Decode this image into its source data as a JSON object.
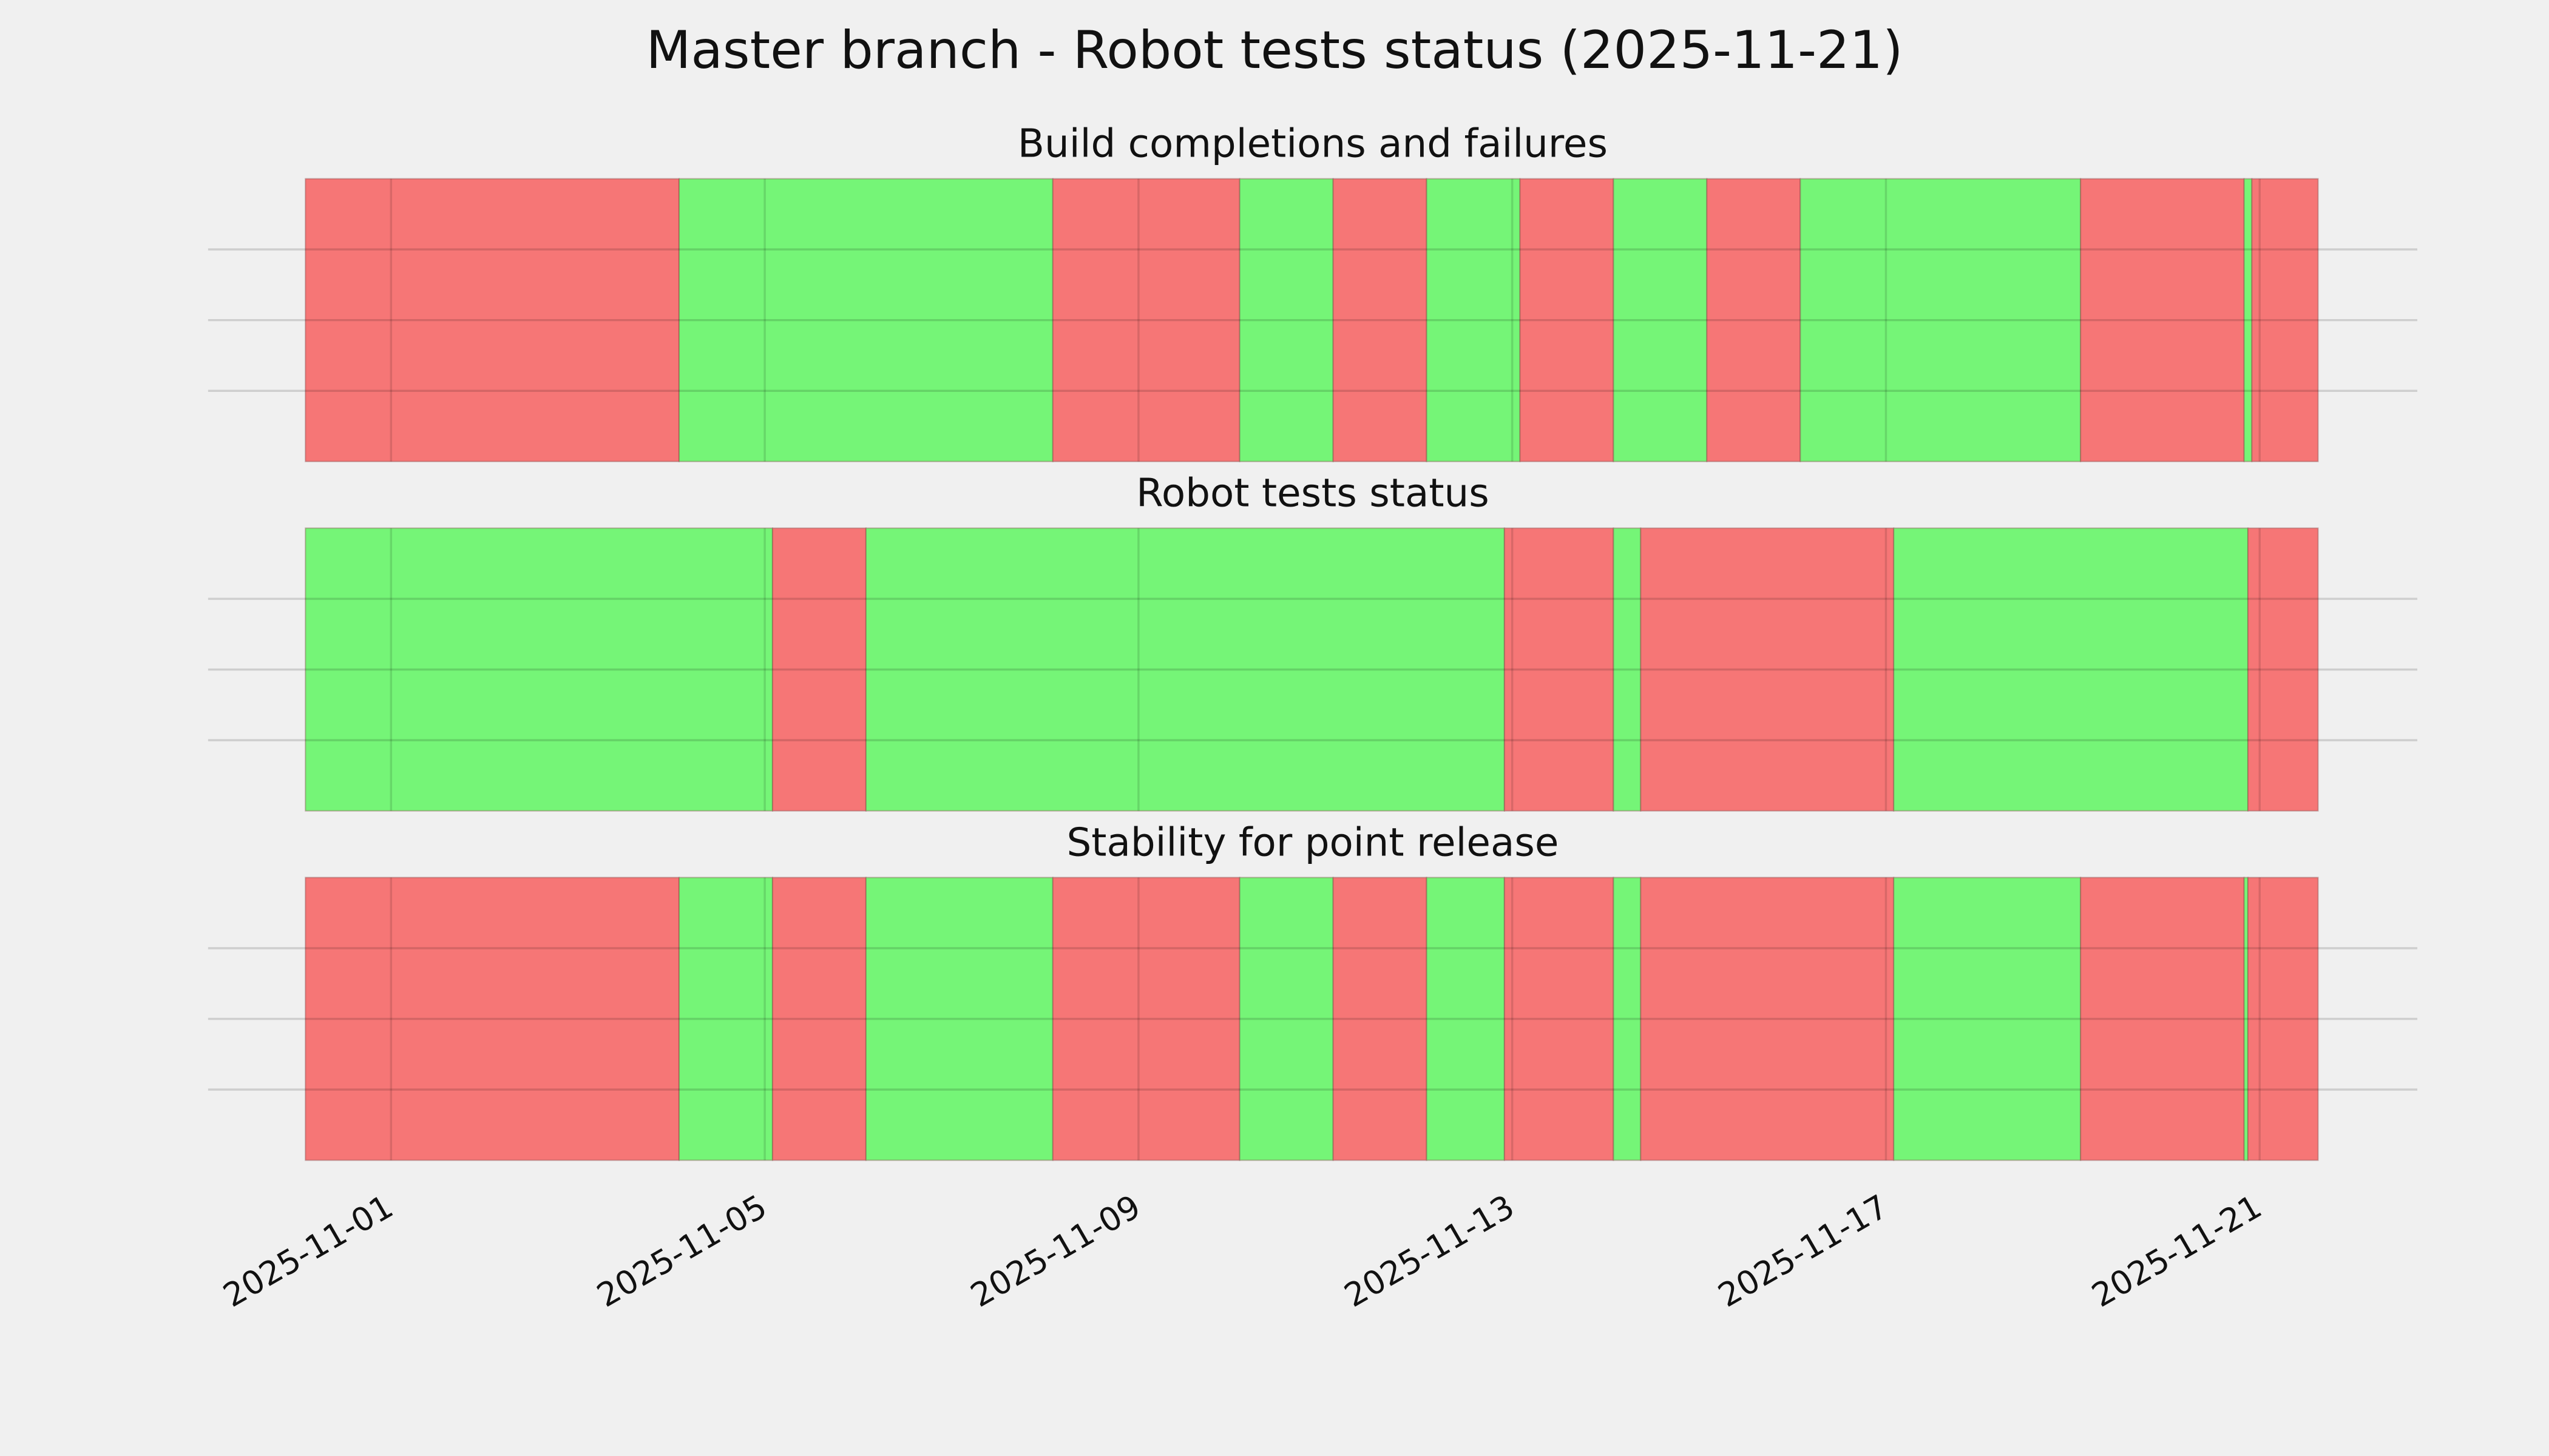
{
  "chart_data": {
    "type": "timeline",
    "title": "Master branch - Robot tests status (2025-11-21)",
    "xlim": [
      "2025-10-30T01:00",
      "2025-11-22T16:30"
    ],
    "xticks": [
      "2025-11-01",
      "2025-11-05",
      "2025-11-09",
      "2025-11-13",
      "2025-11-17",
      "2025-11-21"
    ],
    "grid": true,
    "panels": [
      {
        "title": "Build completions and failures",
        "segments": [
          {
            "start": "2025-10-31T02:00",
            "end": "2025-11-04T02:00",
            "color": "#f67676"
          },
          {
            "start": "2025-11-04T02:00",
            "end": "2025-11-08T02:00",
            "color": "#75f577"
          },
          {
            "start": "2025-11-08T02:00",
            "end": "2025-11-10T02:00",
            "color": "#f67676"
          },
          {
            "start": "2025-11-10T02:00",
            "end": "2025-11-11T02:00",
            "color": "#75f577"
          },
          {
            "start": "2025-11-11T02:00",
            "end": "2025-11-12T02:00",
            "color": "#f67676"
          },
          {
            "start": "2025-11-12T02:00",
            "end": "2025-11-13T02:00",
            "color": "#75f577"
          },
          {
            "start": "2025-11-13T02:00",
            "end": "2025-11-14T02:00",
            "color": "#f67676"
          },
          {
            "start": "2025-11-14T02:00",
            "end": "2025-11-15T02:00",
            "color": "#75f577"
          },
          {
            "start": "2025-11-15T02:00",
            "end": "2025-11-16T02:00",
            "color": "#f67676"
          },
          {
            "start": "2025-11-16T02:00",
            "end": "2025-11-19T02:00",
            "color": "#75f577"
          },
          {
            "start": "2025-11-19T02:00",
            "end": "2025-11-20T20:00",
            "color": "#f67676"
          },
          {
            "start": "2025-11-20T20:00",
            "end": "2025-11-20T22:00",
            "color": "#75f577"
          },
          {
            "start": "2025-11-20T22:00",
            "end": "2025-11-21T15:00",
            "color": "#f67676"
          }
        ]
      },
      {
        "title": "Robot tests status",
        "segments": [
          {
            "start": "2025-10-31T02:00",
            "end": "2025-11-05T02:00",
            "color": "#75f577"
          },
          {
            "start": "2025-11-05T02:00",
            "end": "2025-11-06T02:00",
            "color": "#f67676"
          },
          {
            "start": "2025-11-06T02:00",
            "end": "2025-11-12T22:00",
            "color": "#75f577"
          },
          {
            "start": "2025-11-12T22:00",
            "end": "2025-11-14T02:00",
            "color": "#f67676"
          },
          {
            "start": "2025-11-14T02:00",
            "end": "2025-11-14T09:00",
            "color": "#75f577"
          },
          {
            "start": "2025-11-14T09:00",
            "end": "2025-11-17T02:00",
            "color": "#f67676"
          },
          {
            "start": "2025-11-17T02:00",
            "end": "2025-11-20T21:00",
            "color": "#75f577"
          },
          {
            "start": "2025-11-20T21:00",
            "end": "2025-11-21T15:00",
            "color": "#f67676"
          }
        ]
      },
      {
        "title": "Stability for point release",
        "segments": [
          {
            "start": "2025-10-31T02:00",
            "end": "2025-11-04T02:00",
            "color": "#f67676"
          },
          {
            "start": "2025-11-04T02:00",
            "end": "2025-11-05T02:00",
            "color": "#75f577"
          },
          {
            "start": "2025-11-05T02:00",
            "end": "2025-11-06T02:00",
            "color": "#f67676"
          },
          {
            "start": "2025-11-06T02:00",
            "end": "2025-11-08T02:00",
            "color": "#75f577"
          },
          {
            "start": "2025-11-08T02:00",
            "end": "2025-11-10T02:00",
            "color": "#f67676"
          },
          {
            "start": "2025-11-10T02:00",
            "end": "2025-11-11T02:00",
            "color": "#75f577"
          },
          {
            "start": "2025-11-11T02:00",
            "end": "2025-11-12T02:00",
            "color": "#f67676"
          },
          {
            "start": "2025-11-12T02:00",
            "end": "2025-11-12T22:00",
            "color": "#75f577"
          },
          {
            "start": "2025-11-12T22:00",
            "end": "2025-11-14T02:00",
            "color": "#f67676"
          },
          {
            "start": "2025-11-14T02:00",
            "end": "2025-11-14T09:00",
            "color": "#75f577"
          },
          {
            "start": "2025-11-14T09:00",
            "end": "2025-11-17T02:00",
            "color": "#f67676"
          },
          {
            "start": "2025-11-17T02:00",
            "end": "2025-11-19T02:00",
            "color": "#75f577"
          },
          {
            "start": "2025-11-19T02:00",
            "end": "2025-11-20T20:00",
            "color": "#f67676"
          },
          {
            "start": "2025-11-20T20:00",
            "end": "2025-11-20T21:00",
            "color": "#75f577"
          },
          {
            "start": "2025-11-20T21:00",
            "end": "2025-11-21T15:00",
            "color": "#f67676"
          }
        ]
      }
    ]
  }
}
